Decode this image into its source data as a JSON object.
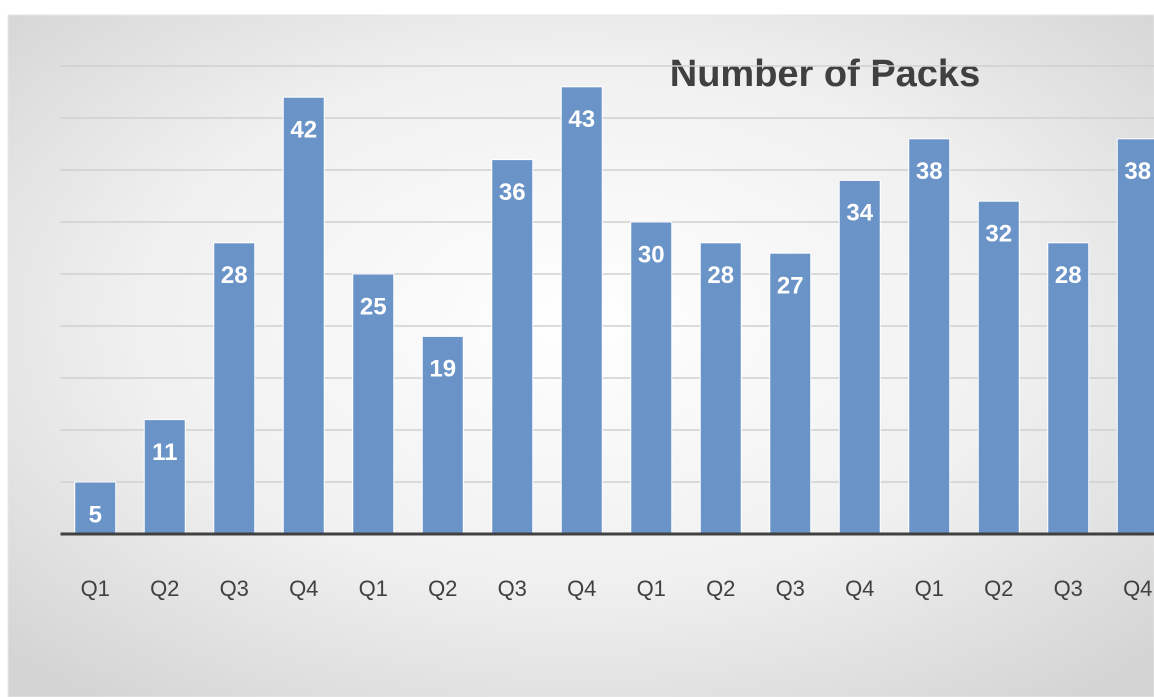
{
  "chart_data": {
    "type": "bar",
    "title": "Number of Packs",
    "categories": [
      "Q1",
      "Q2",
      "Q3",
      "Q4",
      "Q1",
      "Q2",
      "Q3",
      "Q4",
      "Q1",
      "Q2",
      "Q3",
      "Q4",
      "Q1",
      "Q2",
      "Q3",
      "Q4"
    ],
    "values": [
      5,
      11,
      28,
      42,
      25,
      19,
      36,
      43,
      30,
      28,
      27,
      34,
      38,
      32,
      28,
      38
    ],
    "color": "#6a93c8",
    "ylim": [
      0,
      50
    ],
    "yticks": [
      0,
      5,
      10,
      15,
      20,
      25,
      30,
      35,
      40,
      45
    ],
    "grid": true
  }
}
